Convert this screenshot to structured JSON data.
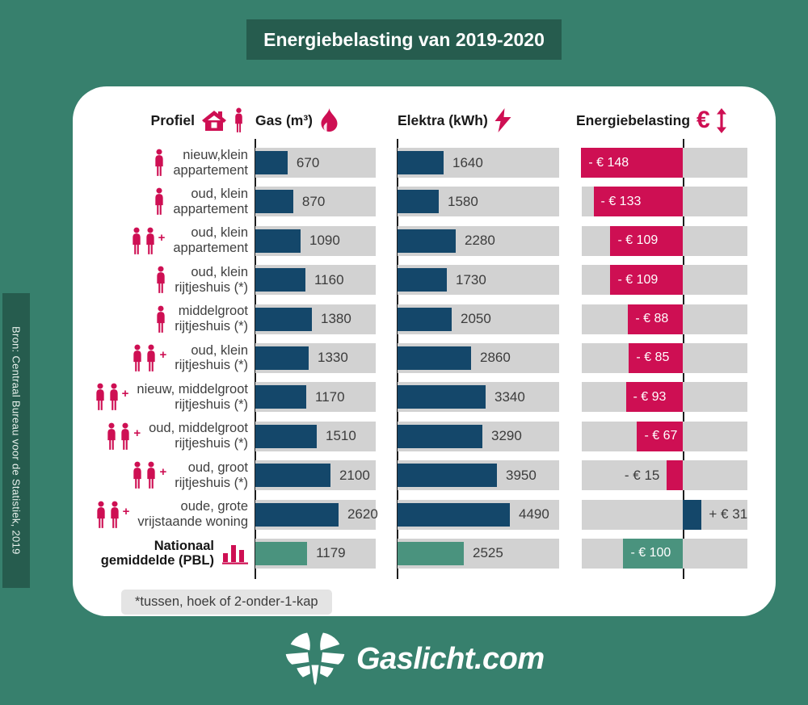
{
  "title": "Energiebelasting van 2019-2020",
  "source": "Bron: Centraal Bureau voor de Statistiek, 2019",
  "footnote": "*tussen, hoek of 2-onder-1-kap",
  "logo": {
    "text": "Gaslicht.com"
  },
  "columns": {
    "profile": {
      "label": "Profiel",
      "icons": [
        "house-icon",
        "person-icon"
      ]
    },
    "gas": {
      "label": "Gas (m³)",
      "icon": "flame-icon"
    },
    "elektra": {
      "label": "Elektra (kWh)",
      "icon": "lightning-icon"
    },
    "tax": {
      "label": "Energiebelasting",
      "icon": "euro-updown-icon"
    }
  },
  "colors": {
    "background": "#37806D",
    "banner_green": "#265C4E",
    "navy": "#14476A",
    "crimson": "#CE0F53",
    "green": "#4A937E",
    "track_gray": "#D2D2D2",
    "footnote_gray": "#E4E4E4",
    "text_dark": "#3C3C3C"
  },
  "chart_data": {
    "type": "bar",
    "orientation": "horizontal",
    "title": "Energiebelasting van 2019-2020",
    "columns": [
      "Gas (m³)",
      "Elektra (kWh)",
      "Energiebelasting (€)"
    ],
    "axis_pct": 61.2,
    "legend": "none",
    "rows": [
      {
        "profile_lines": [
          "nieuw,klein",
          "appartement"
        ],
        "icon": "persons-1",
        "bold": false,
        "gas": 670,
        "gas_pct": 26.8,
        "elektra": 1640,
        "elektra_pct": 28.5,
        "bar_color": "navy",
        "tax": -148,
        "tax_label": "- € 148",
        "tax_pct": 61.5,
        "tax_side": "left",
        "tax_color": "crimson",
        "tax_label_pos": "inside"
      },
      {
        "profile_lines": [
          "oud, klein",
          "appartement"
        ],
        "icon": "persons-1",
        "bold": false,
        "gas": 870,
        "gas_pct": 31.5,
        "elektra": 1580,
        "elektra_pct": 25.5,
        "bar_color": "navy",
        "tax": -133,
        "tax_label": "- € 133",
        "tax_pct": 54.1,
        "tax_side": "left",
        "tax_color": "crimson",
        "tax_label_pos": "inside"
      },
      {
        "profile_lines": [
          "oud, klein",
          "appartement"
        ],
        "icon": "persons-2plus",
        "bold": false,
        "gas": 1090,
        "gas_pct": 37.6,
        "elektra": 2280,
        "elektra_pct": 36.0,
        "bar_color": "navy",
        "tax": -109,
        "tax_label": "- € 109",
        "tax_pct": 43.9,
        "tax_side": "left",
        "tax_color": "crimson",
        "tax_label_pos": "inside"
      },
      {
        "profile_lines": [
          "oud, klein",
          "rijtjeshuis (*)"
        ],
        "icon": "persons-1",
        "bold": false,
        "gas": 1160,
        "gas_pct": 41.6,
        "elektra": 1730,
        "elektra_pct": 30.5,
        "bar_color": "navy",
        "tax": -109,
        "tax_label": "- € 109",
        "tax_pct": 43.9,
        "tax_side": "left",
        "tax_color": "crimson",
        "tax_label_pos": "inside"
      },
      {
        "profile_lines": [
          "middelgroot",
          "rijtjeshuis (*)"
        ],
        "icon": "persons-1",
        "bold": false,
        "gas": 1380,
        "gas_pct": 47.0,
        "elektra": 2050,
        "elektra_pct": 33.5,
        "bar_color": "navy",
        "tax": -88,
        "tax_label": "- € 88",
        "tax_pct": 33.2,
        "tax_side": "left",
        "tax_color": "crimson",
        "tax_label_pos": "inside"
      },
      {
        "profile_lines": [
          "oud, klein",
          "rijtjeshuis (*)"
        ],
        "icon": "persons-2plus",
        "bold": false,
        "gas": 1330,
        "gas_pct": 44.3,
        "elektra": 2860,
        "elektra_pct": 45.5,
        "bar_color": "navy",
        "tax": -85,
        "tax_label": "- € 85",
        "tax_pct": 32.7,
        "tax_side": "left",
        "tax_color": "crimson",
        "tax_label_pos": "inside"
      },
      {
        "profile_lines": [
          "nieuw, middelgroot",
          "rijtjeshuis (*)"
        ],
        "icon": "persons-2plus",
        "bold": false,
        "gas": 1170,
        "gas_pct": 42.3,
        "elektra": 3340,
        "elektra_pct": 54.5,
        "bar_color": "navy",
        "tax": -93,
        "tax_label": "- € 93",
        "tax_pct": 34.6,
        "tax_side": "left",
        "tax_color": "crimson",
        "tax_label_pos": "inside"
      },
      {
        "profile_lines": [
          "oud, middelgroot",
          "rijtjeshuis (*)"
        ],
        "icon": "persons-2plus",
        "bold": false,
        "gas": 1510,
        "gas_pct": 51.0,
        "elektra": 3290,
        "elektra_pct": 52.5,
        "bar_color": "navy",
        "tax": -67,
        "tax_label": "- € 67",
        "tax_pct": 27.8,
        "tax_side": "left",
        "tax_color": "crimson",
        "tax_label_pos": "inside"
      },
      {
        "profile_lines": [
          "oud, groot",
          "rijtjeshuis (*)"
        ],
        "icon": "persons-2plus",
        "bold": false,
        "gas": 2100,
        "gas_pct": 62.4,
        "elektra": 3950,
        "elektra_pct": 61.5,
        "bar_color": "navy",
        "tax": -15,
        "tax_label": "- € 15",
        "tax_pct": 9.8,
        "tax_side": "left",
        "tax_color": "crimson",
        "tax_label_pos": "outside-left"
      },
      {
        "profile_lines": [
          "oude, grote",
          "vrijstaande woning"
        ],
        "icon": "persons-2plus",
        "bold": false,
        "gas": 2620,
        "gas_pct": 69.1,
        "elektra": 4490,
        "elektra_pct": 69.5,
        "bar_color": "navy",
        "tax": 31,
        "tax_label": "+ € 31",
        "tax_pct": 11.2,
        "tax_side": "right",
        "tax_color": "navy",
        "tax_label_pos": "outside-right"
      },
      {
        "profile_lines": [
          "Nationaal",
          "gemiddelde (PBL)"
        ],
        "icon": "bar-chart",
        "bold": true,
        "gas": 1179,
        "gas_pct": 43.0,
        "elektra": 2525,
        "elektra_pct": 41.0,
        "bar_color": "green",
        "tax": -100,
        "tax_label": "- € 100",
        "tax_pct": 36.1,
        "tax_side": "left",
        "tax_color": "green",
        "tax_label_pos": "inside"
      }
    ]
  }
}
